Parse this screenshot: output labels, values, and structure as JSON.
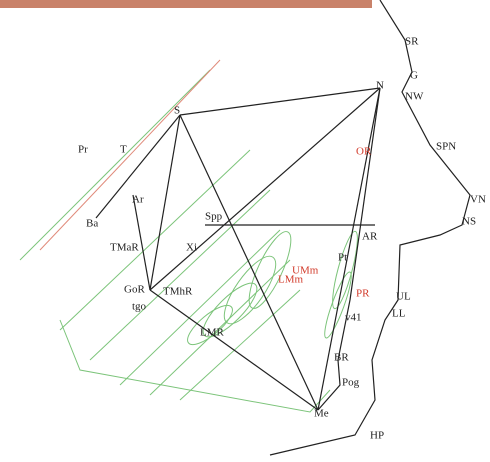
{
  "labels": [
    "SR",
    "G",
    "NW",
    "SPN",
    "VN",
    "NS",
    "N",
    "S",
    "Pr",
    "T",
    "Ba",
    "Ar",
    "TMaR",
    "Xi",
    "Spp",
    "AR",
    "OR",
    "UMm",
    "LMm",
    "Pt",
    "PR",
    "UL",
    "LL",
    "v41",
    "GoR",
    "tgo",
    "TMhR",
    "LMR",
    "BR",
    "Pog",
    "Me",
    "HP"
  ]
}
